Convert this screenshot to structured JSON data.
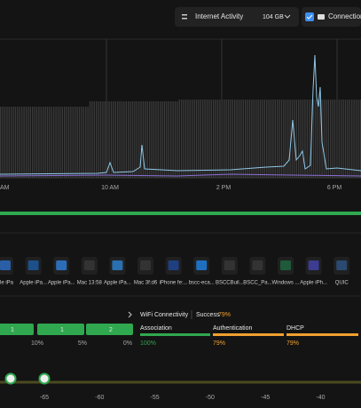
{
  "toolbar": {
    "selector": "Internet Activity",
    "volume": "104 GB",
    "toggle": "Connection"
  },
  "activity": {
    "time_labels": [
      "AM",
      "10 AM",
      "2 PM",
      "6 PM"
    ]
  },
  "devices": [
    "le iPa",
    "Apple iPa...",
    "Apple iPa...",
    "Mac 13:58",
    "Apple iPa...",
    "Mac 3f:d6",
    "iPhone fe:...",
    "bscc-eca...",
    "BSCCBuil...",
    "BSCC_Pa...",
    "Windows ...",
    "Apple iPh...",
    "QUIC"
  ],
  "counts": {
    "boxes": [
      "1",
      "1",
      "2"
    ],
    "percents": [
      "10%",
      "5%",
      "0%"
    ]
  },
  "wifi": {
    "title": "WiFi Connectivity",
    "success_label": "Success",
    "success": "79%",
    "stages": [
      {
        "name": "Association",
        "value": "100%"
      },
      {
        "name": "Authentication",
        "value": "79%"
      },
      {
        "name": "DHCP",
        "value": "79%"
      }
    ]
  },
  "signal_axis": [
    "-65",
    "-60",
    "-55",
    "-50",
    "-45",
    "-40"
  ]
}
